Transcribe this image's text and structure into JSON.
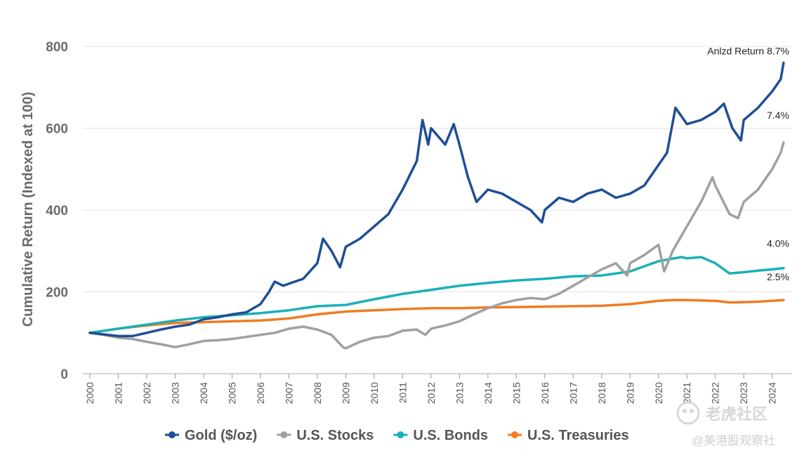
{
  "chart_data": {
    "type": "line",
    "title": "",
    "ylabel": "Cumulative Return (Indexed at 100)",
    "xlabel": "",
    "ylim": [
      0,
      800
    ],
    "xlim": [
      2000,
      2024.5
    ],
    "yticks": [
      0,
      200,
      400,
      600,
      800
    ],
    "xticks": [
      "2000",
      "2001",
      "2002",
      "2003",
      "2004",
      "2005",
      "2006",
      "2007",
      "2008",
      "2009",
      "2010",
      "2011",
      "2012",
      "2013",
      "2014",
      "2015",
      "2016",
      "2017",
      "2018",
      "2019",
      "2020",
      "2021",
      "2022",
      "2023",
      "2024"
    ],
    "grid": true,
    "legend_position": "bottom",
    "series": [
      {
        "name": "Gold ($/oz)",
        "color": "#1f4e96",
        "end_label": "Anlzd Return 8.7%",
        "points": [
          [
            2000,
            100
          ],
          [
            2000.5,
            96
          ],
          [
            2001,
            92
          ],
          [
            2001.5,
            92
          ],
          [
            2002,
            100
          ],
          [
            2002.5,
            108
          ],
          [
            2003,
            115
          ],
          [
            2003.5,
            120
          ],
          [
            2004,
            133
          ],
          [
            2004.5,
            138
          ],
          [
            2005,
            145
          ],
          [
            2005.5,
            150
          ],
          [
            2006,
            170
          ],
          [
            2006.3,
            200
          ],
          [
            2006.5,
            225
          ],
          [
            2006.8,
            215
          ],
          [
            2007,
            220
          ],
          [
            2007.5,
            232
          ],
          [
            2008,
            270
          ],
          [
            2008.2,
            330
          ],
          [
            2008.5,
            300
          ],
          [
            2008.8,
            260
          ],
          [
            2009,
            310
          ],
          [
            2009.5,
            330
          ],
          [
            2010,
            360
          ],
          [
            2010.5,
            390
          ],
          [
            2011,
            450
          ],
          [
            2011.5,
            520
          ],
          [
            2011.7,
            620
          ],
          [
            2011.9,
            560
          ],
          [
            2012,
            600
          ],
          [
            2012.5,
            560
          ],
          [
            2012.8,
            610
          ],
          [
            2013,
            560
          ],
          [
            2013.3,
            480
          ],
          [
            2013.6,
            420
          ],
          [
            2014,
            450
          ],
          [
            2014.5,
            440
          ],
          [
            2015,
            420
          ],
          [
            2015.5,
            400
          ],
          [
            2015.9,
            370
          ],
          [
            2016,
            400
          ],
          [
            2016.5,
            430
          ],
          [
            2017,
            420
          ],
          [
            2017.5,
            440
          ],
          [
            2018,
            450
          ],
          [
            2018.5,
            430
          ],
          [
            2019,
            440
          ],
          [
            2019.5,
            460
          ],
          [
            2020,
            510
          ],
          [
            2020.3,
            540
          ],
          [
            2020.6,
            650
          ],
          [
            2020.9,
            620
          ],
          [
            2021,
            610
          ],
          [
            2021.5,
            620
          ],
          [
            2022,
            640
          ],
          [
            2022.3,
            660
          ],
          [
            2022.6,
            600
          ],
          [
            2022.9,
            570
          ],
          [
            2023,
            620
          ],
          [
            2023.5,
            650
          ],
          [
            2024,
            690
          ],
          [
            2024.3,
            720
          ],
          [
            2024.4,
            760
          ]
        ]
      },
      {
        "name": "U.S. Stocks",
        "color": "#a0a0a0",
        "end_label": "7.4%",
        "points": [
          [
            2000,
            100
          ],
          [
            2000.5,
            95
          ],
          [
            2001,
            88
          ],
          [
            2001.5,
            85
          ],
          [
            2002,
            78
          ],
          [
            2002.5,
            72
          ],
          [
            2003,
            65
          ],
          [
            2003.5,
            72
          ],
          [
            2004,
            80
          ],
          [
            2004.5,
            82
          ],
          [
            2005,
            85
          ],
          [
            2005.5,
            90
          ],
          [
            2006,
            95
          ],
          [
            2006.5,
            100
          ],
          [
            2007,
            110
          ],
          [
            2007.5,
            115
          ],
          [
            2008,
            108
          ],
          [
            2008.5,
            95
          ],
          [
            2008.9,
            65
          ],
          [
            2009,
            62
          ],
          [
            2009.5,
            78
          ],
          [
            2010,
            88
          ],
          [
            2010.5,
            92
          ],
          [
            2011,
            105
          ],
          [
            2011.5,
            108
          ],
          [
            2011.8,
            95
          ],
          [
            2012,
            110
          ],
          [
            2012.5,
            118
          ],
          [
            2013,
            128
          ],
          [
            2013.5,
            145
          ],
          [
            2014,
            160
          ],
          [
            2014.5,
            172
          ],
          [
            2015,
            180
          ],
          [
            2015.5,
            185
          ],
          [
            2016,
            182
          ],
          [
            2016.5,
            195
          ],
          [
            2017,
            215
          ],
          [
            2017.5,
            235
          ],
          [
            2018,
            255
          ],
          [
            2018.5,
            270
          ],
          [
            2018.9,
            240
          ],
          [
            2019,
            270
          ],
          [
            2019.5,
            290
          ],
          [
            2020,
            315
          ],
          [
            2020.2,
            250
          ],
          [
            2020.5,
            300
          ],
          [
            2021,
            360
          ],
          [
            2021.5,
            420
          ],
          [
            2021.9,
            480
          ],
          [
            2022,
            460
          ],
          [
            2022.5,
            390
          ],
          [
            2022.8,
            380
          ],
          [
            2023,
            420
          ],
          [
            2023.5,
            450
          ],
          [
            2024,
            500
          ],
          [
            2024.3,
            540
          ],
          [
            2024.4,
            565
          ]
        ]
      },
      {
        "name": "U.S. Bonds",
        "color": "#1ab0b8",
        "end_label": "4.0%",
        "points": [
          [
            2000,
            100
          ],
          [
            2001,
            110
          ],
          [
            2002,
            120
          ],
          [
            2003,
            130
          ],
          [
            2004,
            138
          ],
          [
            2005,
            143
          ],
          [
            2006,
            148
          ],
          [
            2007,
            155
          ],
          [
            2008,
            165
          ],
          [
            2009,
            168
          ],
          [
            2010,
            182
          ],
          [
            2011,
            195
          ],
          [
            2012,
            205
          ],
          [
            2013,
            215
          ],
          [
            2014,
            222
          ],
          [
            2015,
            228
          ],
          [
            2016,
            232
          ],
          [
            2017,
            238
          ],
          [
            2018,
            240
          ],
          [
            2019,
            250
          ],
          [
            2020,
            275
          ],
          [
            2020.8,
            285
          ],
          [
            2021,
            282
          ],
          [
            2021.5,
            285
          ],
          [
            2022,
            270
          ],
          [
            2022.5,
            245
          ],
          [
            2023,
            248
          ],
          [
            2023.5,
            252
          ],
          [
            2024,
            255
          ],
          [
            2024.4,
            258
          ]
        ]
      },
      {
        "name": "U.S. Treasuries",
        "color": "#f07b23",
        "end_label": "2.5%",
        "points": [
          [
            2000,
            100
          ],
          [
            2001,
            110
          ],
          [
            2002,
            118
          ],
          [
            2003,
            124
          ],
          [
            2004,
            126
          ],
          [
            2005,
            128
          ],
          [
            2006,
            130
          ],
          [
            2007,
            135
          ],
          [
            2008,
            145
          ],
          [
            2009,
            152
          ],
          [
            2010,
            155
          ],
          [
            2011,
            158
          ],
          [
            2012,
            160
          ],
          [
            2013,
            160
          ],
          [
            2014,
            162
          ],
          [
            2015,
            163
          ],
          [
            2016,
            164
          ],
          [
            2017,
            165
          ],
          [
            2018,
            166
          ],
          [
            2019,
            170
          ],
          [
            2020,
            178
          ],
          [
            2020.5,
            180
          ],
          [
            2021,
            180
          ],
          [
            2022,
            178
          ],
          [
            2022.5,
            174
          ],
          [
            2023,
            175
          ],
          [
            2023.5,
            176
          ],
          [
            2024,
            178
          ],
          [
            2024.4,
            180
          ]
        ]
      }
    ]
  },
  "watermark": {
    "logo_text": "老虎社区",
    "handle": "@美港股观察社"
  }
}
